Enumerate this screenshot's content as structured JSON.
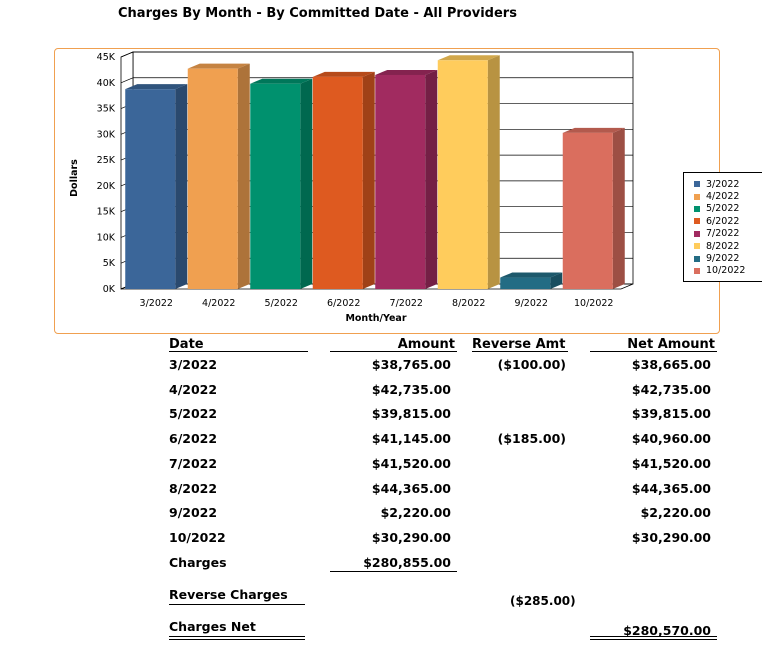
{
  "report_title": "Charges By Month - By Committed Date - All Providers",
  "chart_data": {
    "type": "bar",
    "categories": [
      "3/2022",
      "4/2022",
      "5/2022",
      "6/2022",
      "7/2022",
      "8/2022",
      "9/2022",
      "10/2022"
    ],
    "values": [
      38765,
      42735,
      39815,
      41145,
      41520,
      44365,
      2220,
      30290
    ],
    "colors": [
      "#3b6699",
      "#f0a050",
      "#00916e",
      "#de5a20",
      "#a12b60",
      "#ffcc5c",
      "#236c84",
      "#da6e5e"
    ],
    "xlabel": "Month/Year",
    "ylabel": "Dollars",
    "ylim": [
      0,
      45000
    ],
    "yticks": [
      0,
      5000,
      10000,
      15000,
      20000,
      25000,
      30000,
      35000,
      40000,
      45000
    ],
    "ytick_labels": [
      "0K",
      "5K",
      "10K",
      "15K",
      "20K",
      "25K",
      "30K",
      "35K",
      "40K",
      "45K"
    ],
    "grid": true,
    "legend_position": "right"
  },
  "table": {
    "headers": {
      "date": "Date",
      "amount": "Amount",
      "reverse": "Reverse Amt",
      "net": "Net Amount"
    },
    "rows": [
      {
        "date": "3/2022",
        "amount": "$38,765.00",
        "reverse": "($100.00)",
        "net": "$38,665.00"
      },
      {
        "date": "4/2022",
        "amount": "$42,735.00",
        "reverse": "",
        "net": "$42,735.00"
      },
      {
        "date": "5/2022",
        "amount": "$39,815.00",
        "reverse": "",
        "net": "$39,815.00"
      },
      {
        "date": "6/2022",
        "amount": "$41,145.00",
        "reverse": "($185.00)",
        "net": "$40,960.00"
      },
      {
        "date": "7/2022",
        "amount": "$41,520.00",
        "reverse": "",
        "net": "$41,520.00"
      },
      {
        "date": "8/2022",
        "amount": "$44,365.00",
        "reverse": "",
        "net": "$44,365.00"
      },
      {
        "date": "9/2022",
        "amount": "$2,220.00",
        "reverse": "",
        "net": "$2,220.00"
      },
      {
        "date": "10/2022",
        "amount": "$30,290.00",
        "reverse": "",
        "net": "$30,290.00"
      }
    ],
    "summary": {
      "charges_label": "Charges",
      "charges_total": "$280,855.00",
      "reverse_label": "Reverse Charges",
      "reverse_total": "($285.00)",
      "net_label": "Charges Net",
      "net_total": "$280,570.00"
    }
  }
}
